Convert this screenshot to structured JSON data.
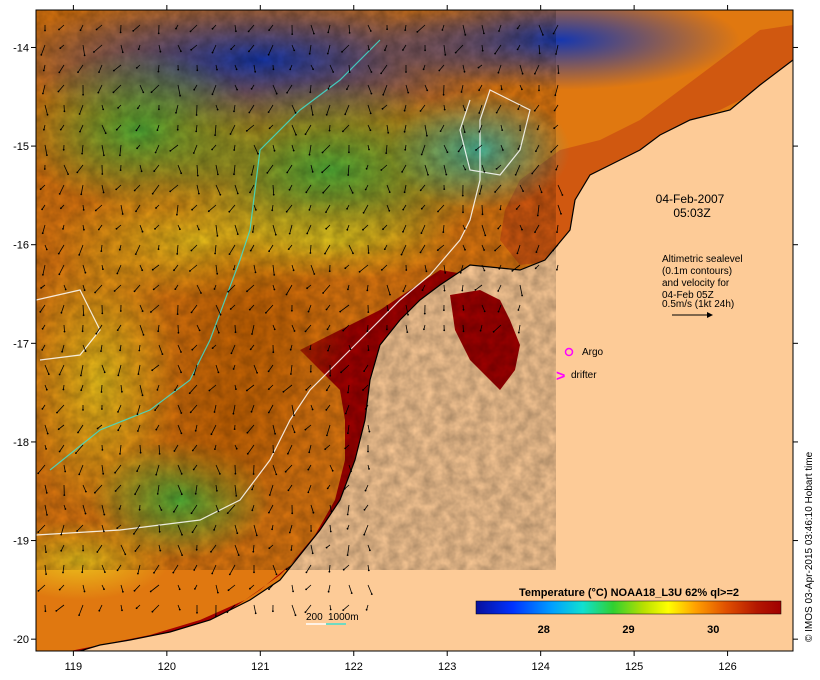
{
  "map": {
    "date": "04-Feb-2007",
    "time": "05:03Z",
    "lat_ticks": [
      -14,
      -15,
      -16,
      -17,
      -18,
      -19,
      -20
    ],
    "lon_ticks": [
      119,
      120,
      121,
      122,
      123,
      124,
      125,
      126
    ],
    "lat_range": [
      -20.12,
      -13.62
    ],
    "lon_range": [
      118.6,
      126.7
    ]
  },
  "altimetry": {
    "lines": [
      "Altimetric sealevel",
      "(0.1m contours)",
      "and velocity for",
      "04-Feb 05Z",
      "0.5m/s (1kt 24h)"
    ]
  },
  "markers": {
    "argo_label": "Argo",
    "drifter_label": "drifter",
    "argo_color": "#ff00ff",
    "drifter_color": "#ff00ff"
  },
  "bathymetry": {
    "label_200": "200",
    "label_1000": "1000m",
    "color_200": "#ffffff",
    "color_1000": "#40e0d0"
  },
  "colorbar": {
    "title": "Temperature (°C) NOAA18_L3U 62% ql>=2",
    "ticks": [
      "28",
      "29",
      "30"
    ],
    "tick_values": [
      28,
      29,
      30
    ],
    "range": [
      27.2,
      30.8
    ]
  },
  "credit": "© IMOS 03-Apr-2015 03:46:10 Hobart time",
  "colors": {
    "land": "#fdcb97",
    "frame": "#000000",
    "sst_low": "#08109c",
    "sst_high": "#a50000"
  }
}
